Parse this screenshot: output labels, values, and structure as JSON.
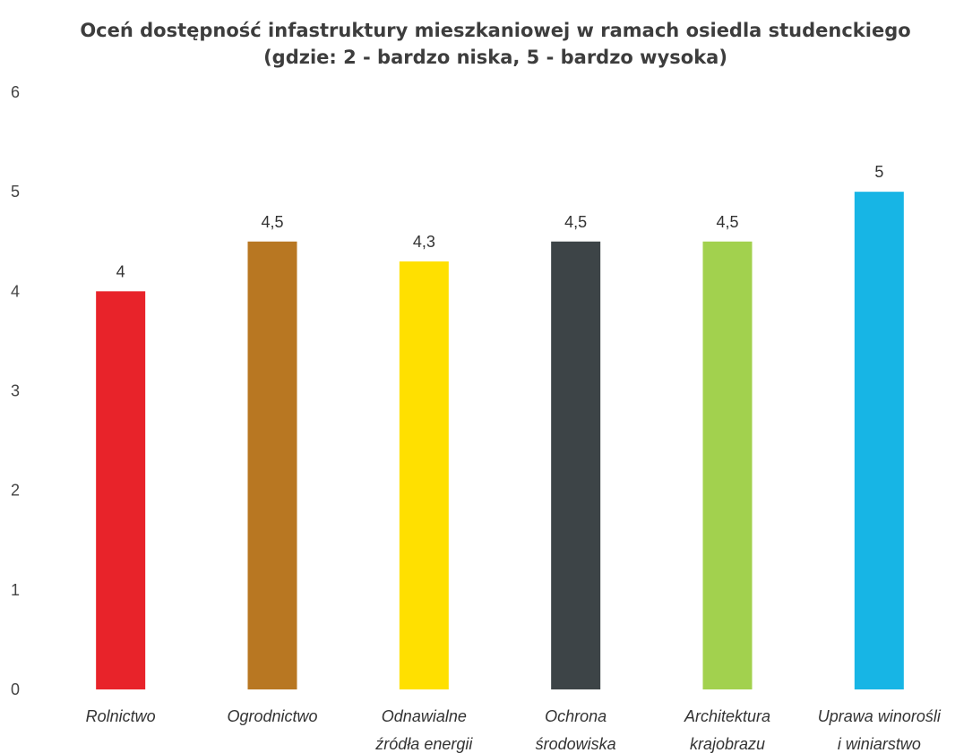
{
  "chart_data": {
    "type": "bar",
    "title": [
      "Oceń dostępność infastruktury mieszkaniowej w ramach osiedla studenckiego",
      "(gdzie: 2 - bardzo niska, 5 - bardzo wysoka)"
    ],
    "categories": [
      [
        "Rolnictwo"
      ],
      [
        "Ogrodnictwo"
      ],
      [
        "Odnawialne",
        "źródła energii"
      ],
      [
        "Ochrona",
        "środowiska"
      ],
      [
        "Architektura",
        "krajobrazu"
      ],
      [
        "Uprawa winorośli",
        "i winiarstwo"
      ]
    ],
    "values": [
      4,
      4.5,
      4.3,
      4.5,
      4.5,
      5
    ],
    "data_labels": [
      "4",
      "4,5",
      "4,3",
      "4,5",
      "4,5",
      "5"
    ],
    "colors": [
      "#e8232a",
      "#b87722",
      "#ffe000",
      "#3d4447",
      "#a2d14e",
      "#17b5e5"
    ],
    "ylim": [
      0,
      6
    ],
    "yticks": [
      "0",
      "1",
      "2",
      "3",
      "4",
      "5",
      "6"
    ],
    "grid": false,
    "legend": "none"
  }
}
